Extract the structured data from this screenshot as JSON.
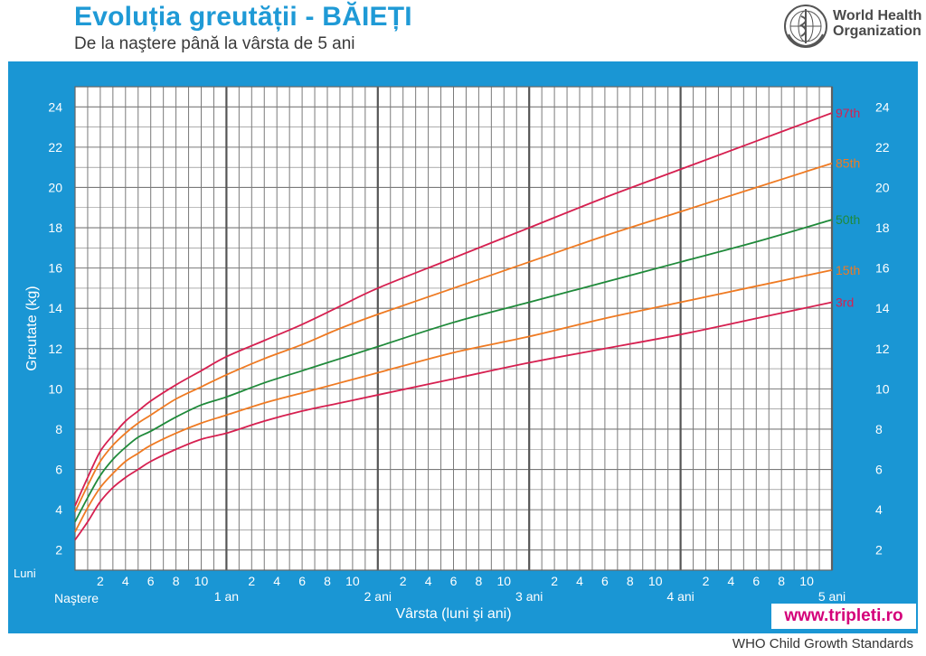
{
  "header": {
    "title": "Evoluția greutății - BĂIEȚI",
    "subtitle": "De la naştere până la vârsta de 5 ani"
  },
  "logo": {
    "org_line1": "World Health",
    "org_line2": "Organization",
    "icon": "who-emblem-icon"
  },
  "footer": {
    "website": "www.tripleti.ro",
    "source": "WHO Child Growth Standards"
  },
  "colors": {
    "panel": "#1a96d4",
    "grid": "#7a7a7a",
    "p97": "#d62050",
    "p85": "#ef7a22",
    "p50": "#1f8a3a",
    "p15": "#ef7a22",
    "p3": "#d62050"
  },
  "chart_data": {
    "type": "line",
    "title": "Evoluția greutății - BĂIEȚI",
    "subtitle": "De la naştere până la vârsta de 5 ani",
    "xlabel": "Vârsta (luni şi ani)",
    "ylabel": "Greutate (kg)",
    "x_unit_label": "Luni",
    "x_start_label": "Naştere",
    "xlim": [
      0,
      60
    ],
    "ylim": [
      1,
      25
    ],
    "y_ticks": [
      2,
      4,
      6,
      8,
      10,
      12,
      14,
      16,
      18,
      20,
      22,
      24
    ],
    "month_tick_labels": [
      "2",
      "4",
      "6",
      "8",
      "10"
    ],
    "year_labels": [
      "1 an",
      "2 ani",
      "3 ani",
      "4 ani",
      "5 ani"
    ],
    "grid": true,
    "x": [
      0,
      1,
      2,
      3,
      4,
      5,
      6,
      8,
      10,
      12,
      15,
      18,
      21,
      24,
      30,
      36,
      42,
      48,
      54,
      60
    ],
    "series": [
      {
        "name": "97th",
        "color": "#d62050",
        "values": [
          4.2,
          5.6,
          6.9,
          7.7,
          8.4,
          8.9,
          9.4,
          10.2,
          10.9,
          11.6,
          12.4,
          13.2,
          14.1,
          15.0,
          16.5,
          18.0,
          19.5,
          20.9,
          22.3,
          23.7
        ]
      },
      {
        "name": "85th",
        "color": "#ef7a22",
        "values": [
          3.9,
          5.2,
          6.4,
          7.2,
          7.8,
          8.3,
          8.7,
          9.5,
          10.1,
          10.7,
          11.5,
          12.2,
          13.0,
          13.7,
          15.0,
          16.3,
          17.6,
          18.8,
          20.0,
          21.2
        ]
      },
      {
        "name": "50th",
        "color": "#1f8a3a",
        "values": [
          3.4,
          4.6,
          5.7,
          6.5,
          7.1,
          7.6,
          7.9,
          8.6,
          9.2,
          9.6,
          10.3,
          10.9,
          11.5,
          12.1,
          13.3,
          14.3,
          15.3,
          16.3,
          17.3,
          18.4
        ]
      },
      {
        "name": "15th",
        "color": "#ef7a22",
        "values": [
          2.9,
          4.1,
          5.1,
          5.8,
          6.4,
          6.8,
          7.2,
          7.8,
          8.3,
          8.7,
          9.3,
          9.8,
          10.3,
          10.8,
          11.8,
          12.6,
          13.5,
          14.3,
          15.1,
          15.9
        ]
      },
      {
        "name": "3rd",
        "color": "#d62050",
        "values": [
          2.5,
          3.4,
          4.4,
          5.1,
          5.6,
          6.0,
          6.4,
          7.0,
          7.5,
          7.8,
          8.4,
          8.9,
          9.3,
          9.7,
          10.5,
          11.3,
          12.0,
          12.7,
          13.5,
          14.3
        ]
      }
    ]
  }
}
